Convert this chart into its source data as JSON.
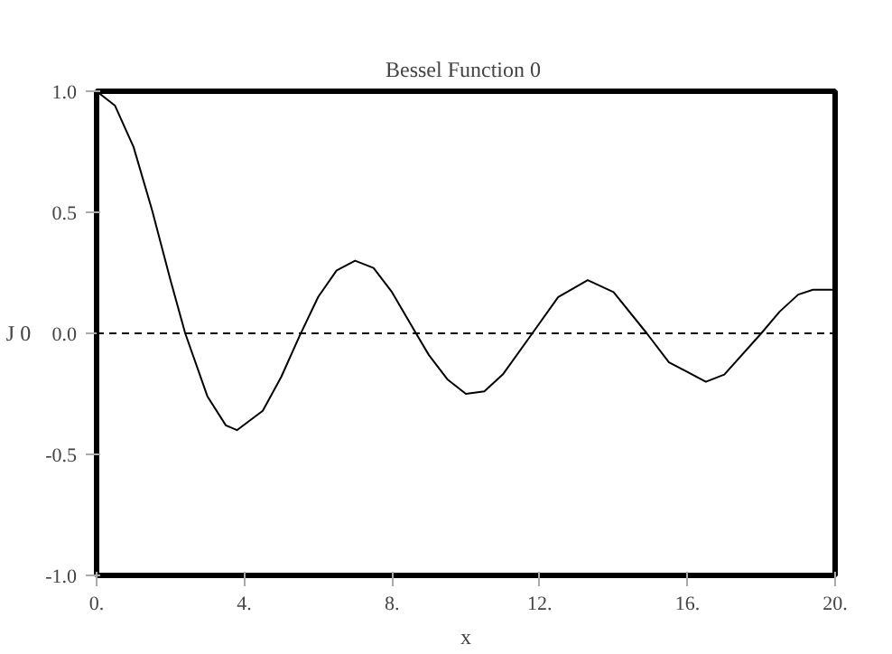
{
  "chart_data": {
    "type": "line",
    "title": "Bessel Function  0",
    "xlabel": "x",
    "ylabel": "J 0",
    "x": [
      0,
      0.5,
      1,
      1.5,
      2,
      2.4,
      3,
      3.5,
      3.8,
      4.5,
      5,
      5.5,
      6,
      6.5,
      7,
      7.5,
      8,
      8.65,
      9,
      9.5,
      10,
      10.5,
      11,
      11.8,
      12.5,
      13.3,
      14,
      14.9,
      15.5,
      16.5,
      17,
      18,
      18.5,
      19,
      19.4,
      20
    ],
    "series": [
      {
        "color": "#000000",
        "values": [
          1,
          0.94,
          0.77,
          0.51,
          0.22,
          0,
          -0.26,
          -0.38,
          -0.4,
          -0.32,
          -0.18,
          -0.01,
          0.15,
          0.26,
          0.3,
          0.27,
          0.17,
          0,
          -0.09,
          -0.19,
          -0.25,
          -0.24,
          -0.17,
          0,
          0.15,
          0.22,
          0.17,
          0,
          -0.12,
          -0.2,
          -0.17,
          0,
          0.09,
          0.16,
          0.18,
          0.18
        ]
      }
    ],
    "xlim": [
      0,
      20
    ],
    "ylim": [
      -1,
      1
    ],
    "xticks": [
      {
        "value": 0,
        "label": "0."
      },
      {
        "value": 4,
        "label": "4."
      },
      {
        "value": 8,
        "label": "8."
      },
      {
        "value": 12,
        "label": "12."
      },
      {
        "value": 16,
        "label": "16."
      },
      {
        "value": 20,
        "label": "20."
      }
    ],
    "yticks": [
      {
        "value": -1,
        "label": "-1.0"
      },
      {
        "value": -0.5,
        "label": "-0.5"
      },
      {
        "value": 0,
        "label": "0.0"
      },
      {
        "value": 0.5,
        "label": "0.5"
      },
      {
        "value": 1,
        "label": "1.0"
      }
    ],
    "ref_lines": [
      {
        "axis": "y",
        "value": 0,
        "label": null,
        "color": "#000000",
        "line_style": "dashed"
      }
    ],
    "grid": false,
    "marker": "none",
    "line_style": "solid"
  }
}
